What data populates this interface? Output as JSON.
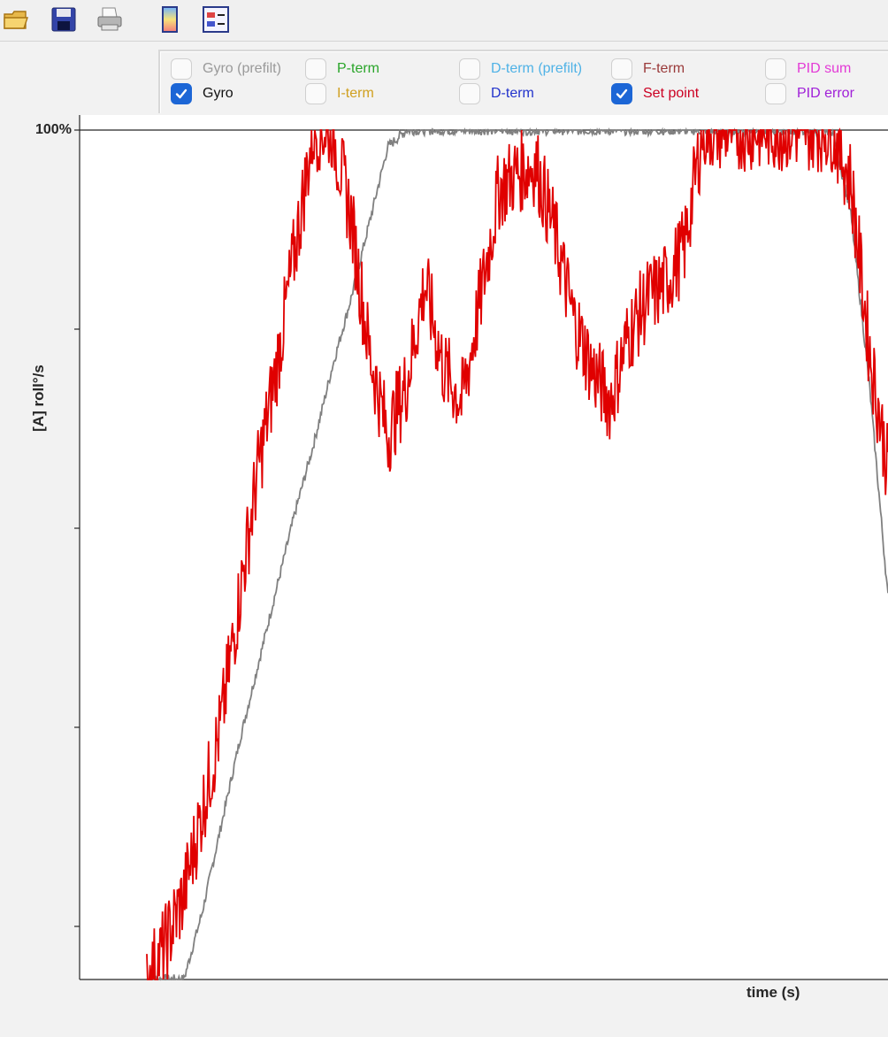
{
  "toolbar": {
    "items": [
      {
        "name": "open-folder-icon"
      },
      {
        "name": "save-icon"
      },
      {
        "name": "print-icon"
      },
      {
        "name": "colorbar-icon"
      },
      {
        "name": "legend-icon"
      }
    ]
  },
  "legend_panel": {
    "options": [
      {
        "label": "Gyro (prefilt)",
        "checked": false,
        "color": "#9a9a9a"
      },
      {
        "label": "P-term",
        "checked": false,
        "color": "#2aa52a"
      },
      {
        "label": "D-term (prefilt)",
        "checked": false,
        "color": "#4fb2e6"
      },
      {
        "label": "F-term",
        "checked": false,
        "color": "#9a3a3a"
      },
      {
        "label": "PID sum",
        "checked": false,
        "color": "#e33ad6"
      },
      {
        "label": "Gyro",
        "checked": true,
        "color": "#111111"
      },
      {
        "label": "I-term",
        "checked": false,
        "color": "#d0a020"
      },
      {
        "label": "D-term",
        "checked": false,
        "color": "#2233cc"
      },
      {
        "label": "Set point",
        "checked": true,
        "color": "#cc0022"
      },
      {
        "label": "PID error",
        "checked": false,
        "color": "#a020d8"
      }
    ]
  },
  "chart_data": {
    "type": "line",
    "ylabel": "[A] roll°/s",
    "xlabel": "time (s)",
    "y_tick_top_label": "100%",
    "ylim": [
      0,
      100
    ],
    "series": [
      {
        "name": "Gyro",
        "color": "#808080",
        "x": [
          0,
          1,
          2,
          3,
          4,
          5,
          6,
          7,
          8,
          9,
          10,
          11,
          12,
          13,
          14,
          15,
          16,
          17,
          18,
          19,
          20,
          21,
          22,
          23,
          24,
          25,
          26,
          27,
          28,
          29,
          30,
          31,
          32,
          33,
          34,
          35,
          36,
          37,
          38,
          39,
          40
        ],
        "y": [
          0,
          0,
          0,
          8,
          18,
          28,
          37,
          46,
          55,
          63,
          72,
          80,
          89,
          98,
          100,
          100,
          100,
          100,
          100,
          100,
          100,
          100,
          100,
          100,
          100,
          100,
          100,
          100,
          100,
          100,
          100,
          100,
          100,
          100,
          100,
          100,
          100,
          100,
          90,
          70,
          45
        ]
      },
      {
        "name": "Set point",
        "color": "#e00000",
        "x": [
          0,
          1,
          2,
          3,
          4,
          5,
          6,
          7,
          8,
          9,
          10,
          11,
          12,
          13,
          14,
          15,
          16,
          17,
          18,
          19,
          20,
          21,
          22,
          23,
          24,
          25,
          26,
          27,
          28,
          29,
          30,
          31,
          32,
          33,
          34,
          35,
          36,
          37,
          38,
          39,
          40
        ],
        "y": [
          0,
          4,
          10,
          20,
          30,
          45,
          60,
          72,
          86,
          100,
          100,
          90,
          74,
          64,
          70,
          82,
          72,
          68,
          80,
          93,
          95,
          96,
          88,
          78,
          72,
          68,
          76,
          80,
          82,
          86,
          100,
          100,
          100,
          100,
          100,
          100,
          100,
          100,
          94,
          74,
          60
        ]
      }
    ]
  }
}
